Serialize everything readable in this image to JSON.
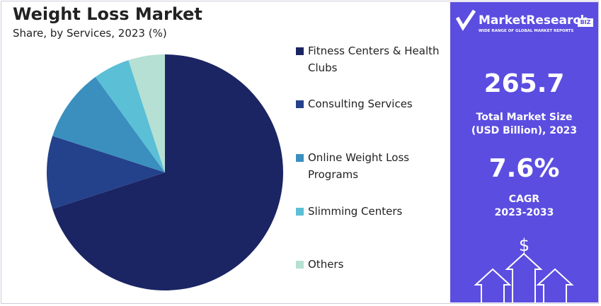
{
  "chart_data": {
    "type": "pie",
    "title": "Weight Loss Market",
    "subtitle": "Share, by Services, 2023 (%)",
    "categories": [
      "Fitness Centers & Health Clubs",
      "Consulting Services",
      "Online Weight Loss Programs",
      "Slimming Centers",
      "Others"
    ],
    "values": [
      70,
      10,
      10,
      5,
      5
    ],
    "colors": [
      "#1b2563",
      "#24418b",
      "#3a8fbf",
      "#5bbfd6",
      "#b5e0d3"
    ],
    "legend": "right"
  },
  "panel": {
    "brand": "MarketResearch",
    "brand_tag": "BIZ",
    "tagline": "WIDE RANGE OF GLOBAL MARKET REPORTS",
    "market_size": "265.7",
    "market_size_label_1": "Total Market Size",
    "market_size_label_2": "(USD Billion), 2023",
    "cagr": "7.6%",
    "cagr_label": "CAGR",
    "cagr_period": "2023-2033",
    "icon_symbol": "$"
  }
}
